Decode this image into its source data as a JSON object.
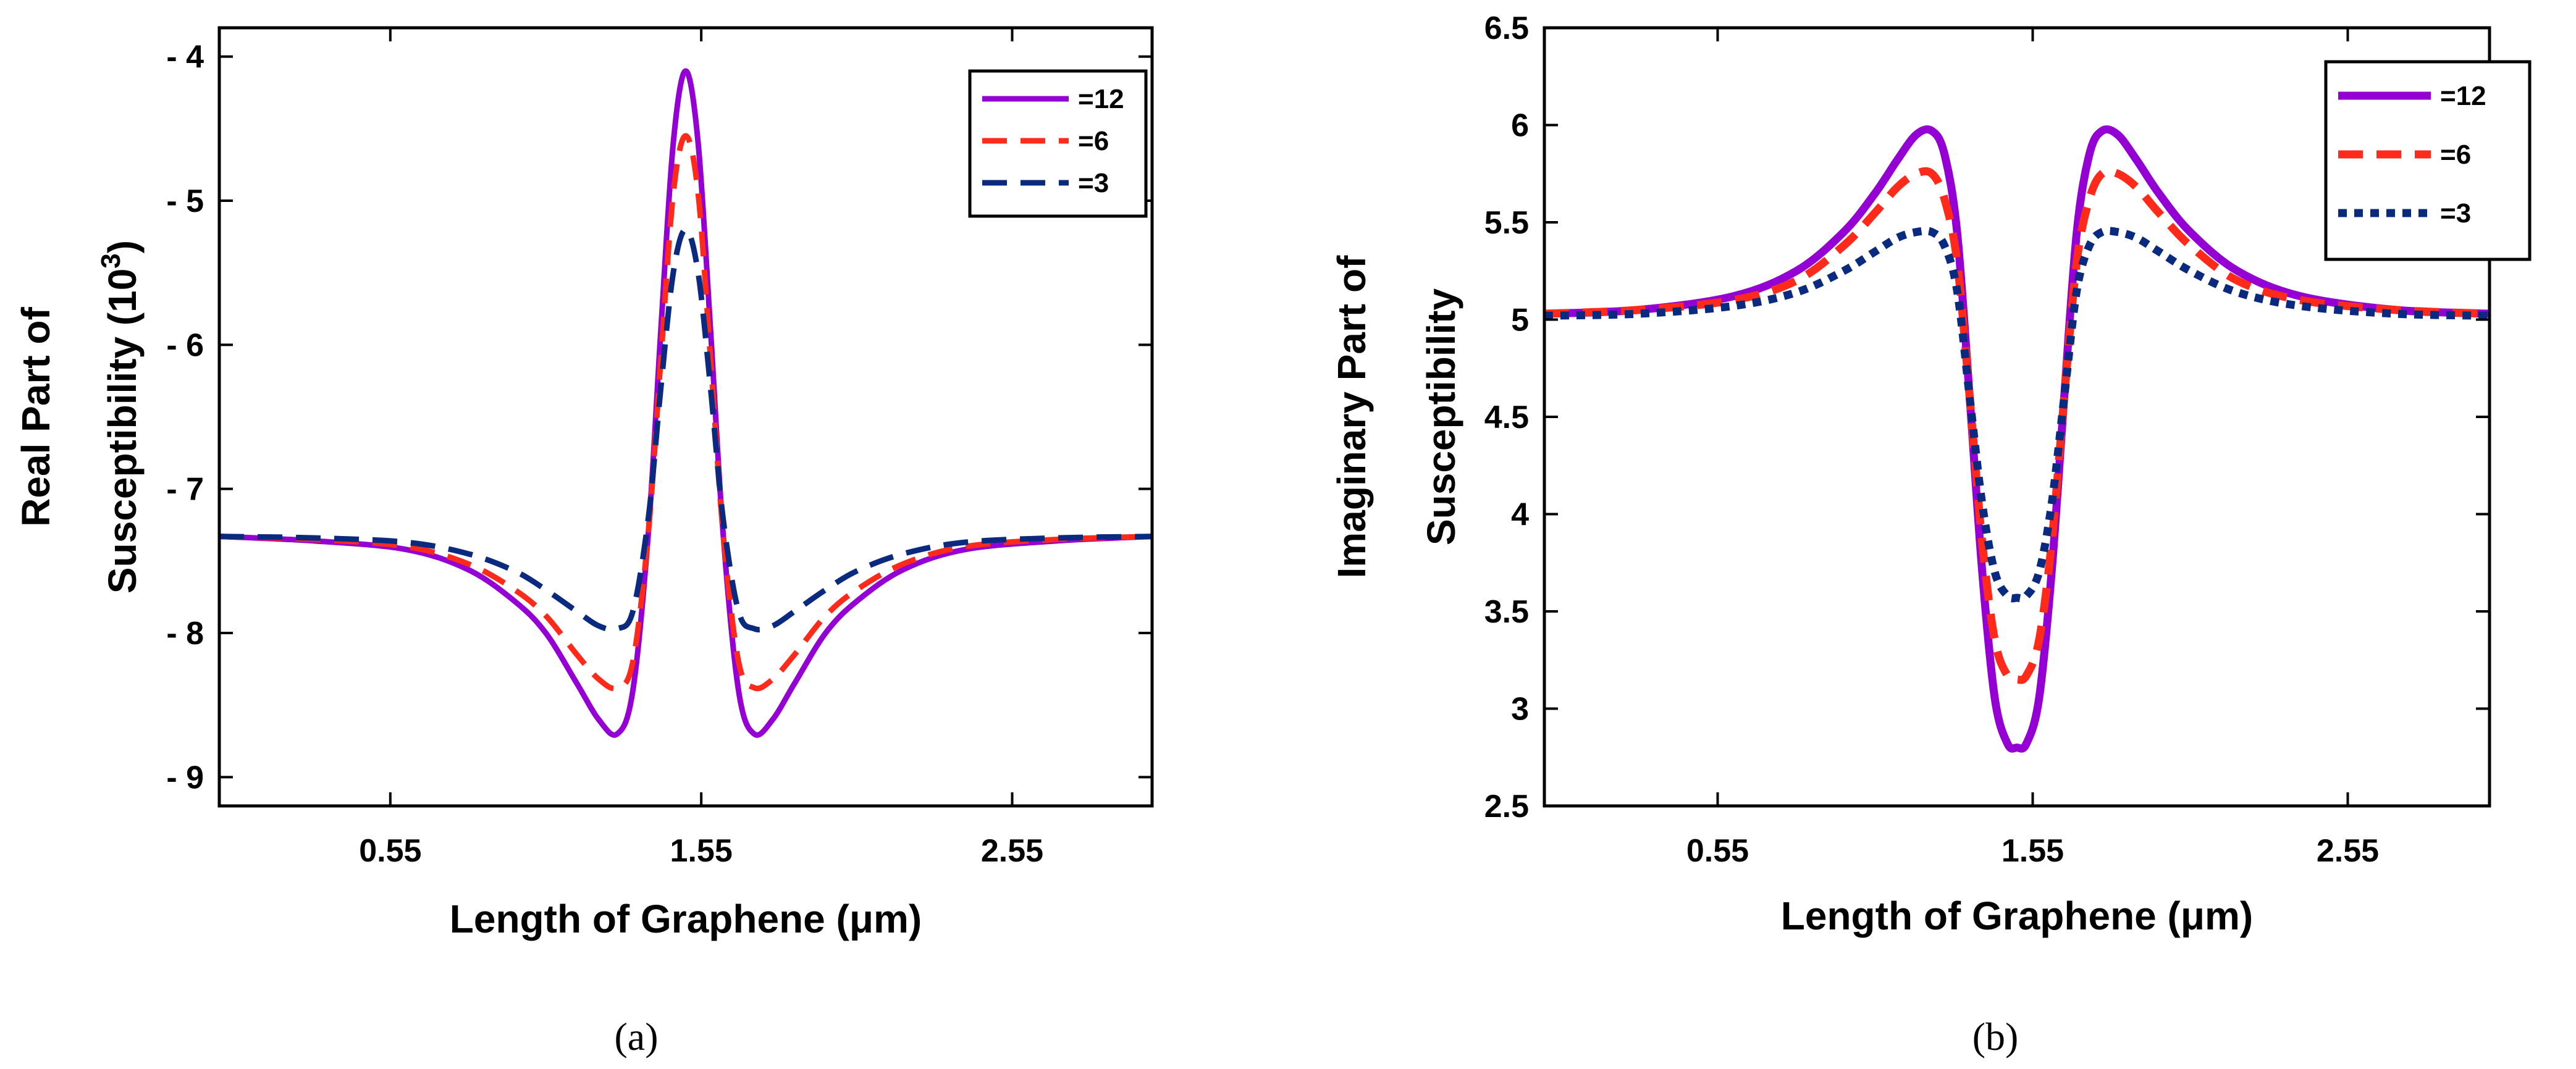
{
  "chart_data": [
    {
      "type": "line",
      "id": "a",
      "caption": "(a)",
      "xlabel": "Length of Graphene (μm)",
      "ylabel_lines": [
        "Real Part of",
        "Susceptibility (10³)"
      ],
      "xlim": [
        0.0,
        3.0
      ],
      "ylim": [
        -9.2,
        -3.8
      ],
      "x_ticks": [
        0.55,
        1.55,
        2.55
      ],
      "x_tick_labels": [
        "0.55",
        "1.55",
        "2.55"
      ],
      "y_ticks": [
        -4,
        -5,
        -6,
        -7,
        -8,
        -9
      ],
      "y_tick_labels": [
        "- 4",
        "- 5",
        "- 6",
        "- 7",
        "- 8",
        "- 9"
      ],
      "legend_position": "top-right",
      "series": [
        {
          "name": "=12",
          "color": "#9400D3",
          "style": "solid",
          "x": [
            0.0,
            0.3,
            0.6,
            0.8,
            0.95,
            1.05,
            1.15,
            1.22,
            1.28,
            1.33,
            1.38,
            1.42,
            1.46,
            1.5,
            1.54,
            1.58,
            1.62,
            1.67,
            1.72,
            1.78,
            1.85,
            1.95,
            2.05,
            2.2,
            2.4,
            2.7,
            3.0
          ],
          "y": [
            -7.33,
            -7.36,
            -7.42,
            -7.56,
            -7.78,
            -8.0,
            -8.35,
            -8.6,
            -8.7,
            -8.4,
            -7.3,
            -5.9,
            -4.6,
            -4.1,
            -4.6,
            -5.9,
            -7.3,
            -8.4,
            -8.7,
            -8.6,
            -8.35,
            -8.0,
            -7.78,
            -7.56,
            -7.42,
            -7.36,
            -7.33
          ]
        },
        {
          "name": "=6",
          "color": "#FF2A1A",
          "style": "dashed",
          "x": [
            0.0,
            0.3,
            0.6,
            0.8,
            0.95,
            1.05,
            1.15,
            1.22,
            1.28,
            1.33,
            1.38,
            1.42,
            1.46,
            1.5,
            1.54,
            1.58,
            1.62,
            1.67,
            1.72,
            1.78,
            1.85,
            1.95,
            2.05,
            2.2,
            2.4,
            2.7,
            3.0
          ],
          "y": [
            -7.33,
            -7.35,
            -7.4,
            -7.52,
            -7.7,
            -7.88,
            -8.15,
            -8.32,
            -8.38,
            -8.2,
            -7.3,
            -6.1,
            -4.95,
            -4.55,
            -4.95,
            -6.1,
            -7.3,
            -8.2,
            -8.38,
            -8.32,
            -8.15,
            -7.88,
            -7.7,
            -7.52,
            -7.4,
            -7.35,
            -7.33
          ]
        },
        {
          "name": "=3",
          "color": "#0A2A80",
          "style": "dashed",
          "x": [
            0.0,
            0.3,
            0.6,
            0.8,
            0.95,
            1.05,
            1.15,
            1.22,
            1.28,
            1.33,
            1.38,
            1.42,
            1.46,
            1.5,
            1.54,
            1.58,
            1.62,
            1.67,
            1.72,
            1.78,
            1.85,
            1.95,
            2.05,
            2.2,
            2.4,
            2.7,
            3.0
          ],
          "y": [
            -7.33,
            -7.34,
            -7.37,
            -7.45,
            -7.57,
            -7.7,
            -7.85,
            -7.95,
            -7.97,
            -7.85,
            -7.2,
            -6.3,
            -5.5,
            -5.2,
            -5.5,
            -6.3,
            -7.2,
            -7.85,
            -7.97,
            -7.95,
            -7.85,
            -7.7,
            -7.57,
            -7.45,
            -7.37,
            -7.34,
            -7.33
          ]
        }
      ]
    },
    {
      "type": "line",
      "id": "b",
      "caption": "(b)",
      "xlabel": "Length of Graphene (μm)",
      "ylabel_lines": [
        "Imaginary Part of",
        "Susceptibility"
      ],
      "xlim": [
        0.0,
        3.0
      ],
      "ylim": [
        2.5,
        6.5
      ],
      "x_ticks": [
        0.55,
        1.55,
        2.55
      ],
      "x_tick_labels": [
        "0.55",
        "1.55",
        "2.55"
      ],
      "y_ticks": [
        2.5,
        3,
        3.5,
        4,
        4.5,
        5,
        5.5,
        6,
        6.5
      ],
      "y_tick_labels": [
        "2.5",
        "3",
        "3.5",
        "4",
        "4.5",
        "5",
        "5.5",
        "6",
        "6.5"
      ],
      "legend_position": "top-right",
      "series": [
        {
          "name": "=12",
          "color": "#9400D3",
          "style": "solid",
          "x": [
            0.0,
            0.3,
            0.6,
            0.8,
            0.95,
            1.05,
            1.12,
            1.18,
            1.23,
            1.27,
            1.31,
            1.35,
            1.39,
            1.43,
            1.47,
            1.5,
            1.53,
            1.57,
            1.61,
            1.65,
            1.69,
            1.73,
            1.77,
            1.82,
            1.88,
            1.95,
            2.05,
            2.2,
            2.4,
            2.7,
            3.0
          ],
          "y": [
            5.03,
            5.05,
            5.12,
            5.25,
            5.45,
            5.65,
            5.82,
            5.95,
            5.97,
            5.85,
            5.45,
            4.6,
            3.7,
            3.05,
            2.82,
            2.8,
            2.82,
            3.05,
            3.7,
            4.6,
            5.45,
            5.85,
            5.97,
            5.95,
            5.82,
            5.65,
            5.45,
            5.25,
            5.12,
            5.05,
            5.03
          ]
        },
        {
          "name": "=6",
          "color": "#FF2A1A",
          "style": "dashed",
          "x": [
            0.0,
            0.3,
            0.6,
            0.8,
            0.95,
            1.05,
            1.12,
            1.18,
            1.23,
            1.27,
            1.31,
            1.35,
            1.39,
            1.43,
            1.47,
            1.5,
            1.53,
            1.57,
            1.61,
            1.65,
            1.69,
            1.73,
            1.77,
            1.82,
            1.88,
            1.95,
            2.05,
            2.2,
            2.4,
            2.7,
            3.0
          ],
          "y": [
            5.03,
            5.05,
            5.1,
            5.2,
            5.38,
            5.55,
            5.68,
            5.75,
            5.75,
            5.62,
            5.3,
            4.6,
            3.85,
            3.35,
            3.17,
            3.15,
            3.17,
            3.35,
            3.85,
            4.6,
            5.3,
            5.62,
            5.75,
            5.75,
            5.68,
            5.55,
            5.38,
            5.2,
            5.1,
            5.05,
            5.03
          ]
        },
        {
          "name": "=3",
          "color": "#0A2A80",
          "style": "dotted",
          "x": [
            0.0,
            0.3,
            0.6,
            0.8,
            0.95,
            1.05,
            1.12,
            1.18,
            1.23,
            1.27,
            1.31,
            1.35,
            1.39,
            1.43,
            1.47,
            1.5,
            1.53,
            1.57,
            1.61,
            1.65,
            1.69,
            1.73,
            1.77,
            1.82,
            1.88,
            1.95,
            2.05,
            2.2,
            2.4,
            2.7,
            3.0
          ],
          "y": [
            5.02,
            5.03,
            5.07,
            5.14,
            5.25,
            5.35,
            5.42,
            5.45,
            5.45,
            5.38,
            5.15,
            4.6,
            4.05,
            3.7,
            3.58,
            3.57,
            3.58,
            3.7,
            4.05,
            4.6,
            5.15,
            5.38,
            5.45,
            5.45,
            5.42,
            5.35,
            5.25,
            5.14,
            5.07,
            5.03,
            5.02
          ]
        }
      ]
    }
  ]
}
